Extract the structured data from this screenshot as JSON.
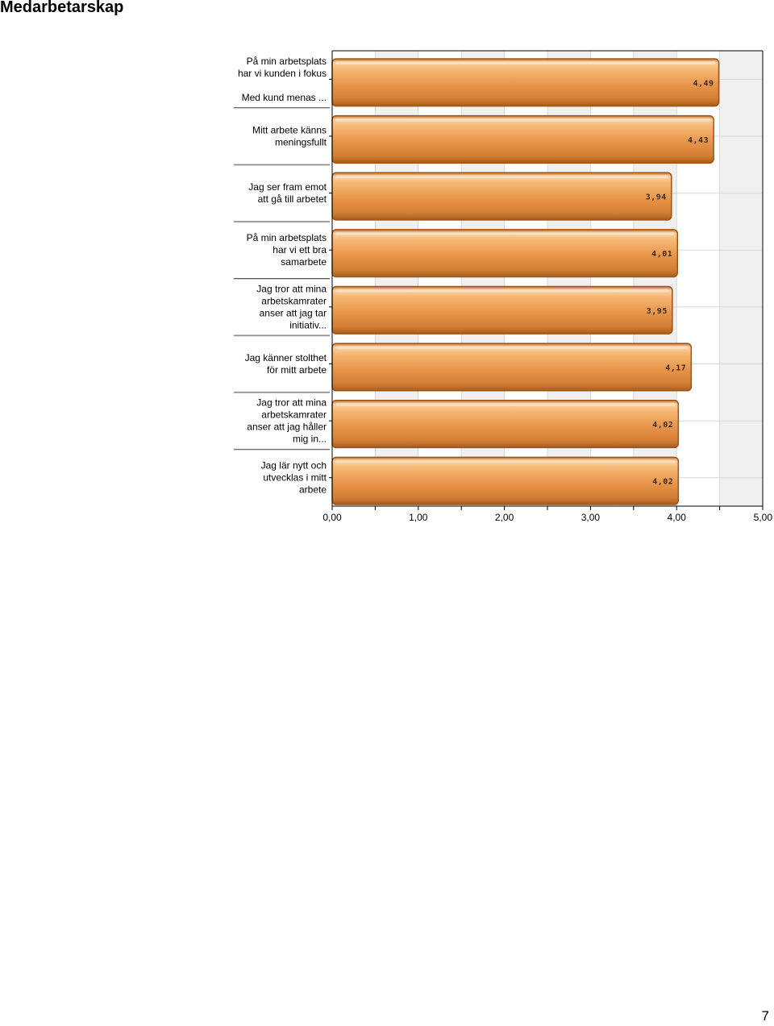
{
  "page": {
    "title": "Medarbetarskap",
    "page_number": "7"
  },
  "chart_data": {
    "type": "bar",
    "orientation": "horizontal",
    "title": "",
    "xlabel": "",
    "ylabel": "",
    "xlim": [
      0,
      5
    ],
    "x_ticks": [
      "0,00",
      "1,00",
      "2,00",
      "3,00",
      "4,00",
      "5,00"
    ],
    "grid": true,
    "categories": [
      [
        "På min arbetsplats",
        "har vi kunden i fokus",
        "",
        "Med kund menas ..."
      ],
      [
        "Mitt arbete känns",
        "meningsfullt"
      ],
      [
        "Jag ser fram emot",
        "att gå till arbetet"
      ],
      [
        "På min arbetsplats",
        "har vi ett bra",
        "samarbete"
      ],
      [
        "Jag tror att mina",
        "arbetskamrater",
        "anser att jag tar",
        "initiativ..."
      ],
      [
        "Jag känner stolthet",
        "för mitt arbete"
      ],
      [
        "Jag tror att mina",
        "arbetskamrater",
        "anser att jag håller",
        "mig in..."
      ],
      [
        "Jag lär nytt och",
        "utvecklas i mitt",
        "arbete"
      ]
    ],
    "values": [
      4.49,
      4.43,
      3.94,
      4.01,
      3.95,
      4.17,
      4.02,
      4.02
    ],
    "value_labels": [
      "4,49",
      "4,43",
      "3,94",
      "4,01",
      "3,95",
      "4,17",
      "4,02",
      "4,02"
    ],
    "colors": {
      "bar": "#e8954a",
      "bar_light": "#f6b874",
      "bar_dark": "#b86a22",
      "bar_border": "#9a5518",
      "band": "#f0f0f0",
      "grid": "#d8d8d8"
    }
  }
}
